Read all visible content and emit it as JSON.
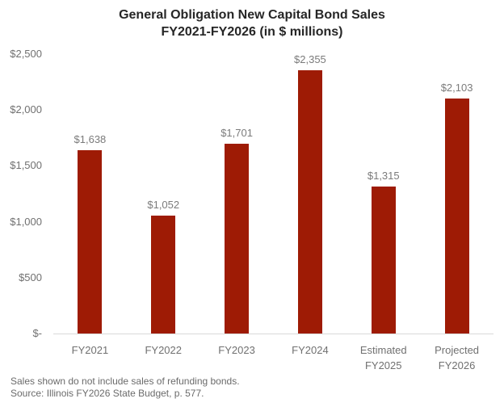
{
  "header": {
    "title_line1": "General Obligation New Capital Bond Sales",
    "title_line2": "FY2021-FY2026 (in $ millions)"
  },
  "chart_data": {
    "type": "bar",
    "title": "General Obligation New Capital Bond Sales FY2021-FY2026 (in $ millions)",
    "categories": [
      "FY2021",
      "FY2022",
      "FY2023",
      "FY2024",
      "Estimated\nFY2025",
      "Projected\nFY2026"
    ],
    "values": [
      1638,
      1052,
      1701,
      2355,
      1315,
      2103
    ],
    "data_labels": [
      "$1,638",
      "$1,052",
      "$1,701",
      "$2,355",
      "$1,315",
      "$2,103"
    ],
    "xlabel": "",
    "ylabel": "",
    "ylim": [
      0,
      2500
    ],
    "yticks": [
      0,
      500,
      1000,
      1500,
      2000,
      2500
    ],
    "ytick_labels": [
      "$-",
      "$500",
      "$1,000",
      "$1,500",
      "$2,000",
      "$2,500"
    ],
    "grid": false,
    "legend": false,
    "bar_color": "#9E1B05",
    "axis_line_color": "#D9D9D9"
  },
  "footnotes": {
    "note": "Sales shown do not include sales of refunding bonds.",
    "source": "Source: Illinois FY2026 State Budget, p. 577."
  },
  "colors": {
    "title_text": "#262626",
    "tick_text": "#707070",
    "data_label_text": "#7B7B7B",
    "footnote_text": "#6B6B6B"
  }
}
